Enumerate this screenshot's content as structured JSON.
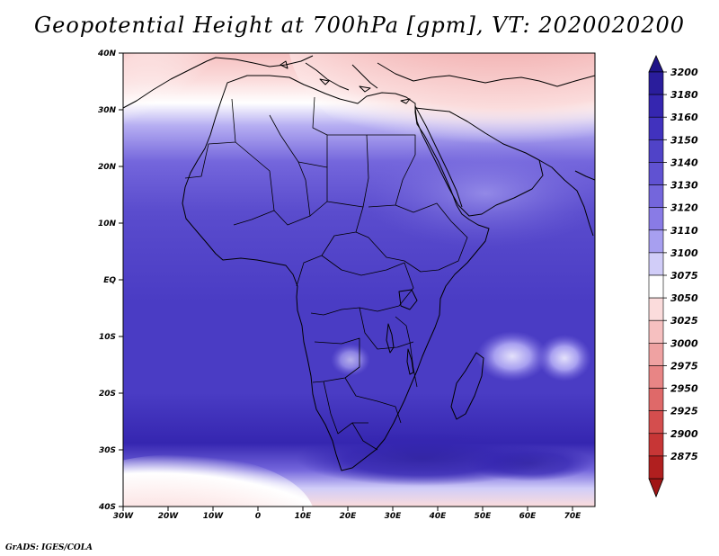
{
  "title": "Geopotential Height at 700hPa [gpm], VT: 2020020200",
  "credit": "GrADS: IGES/COLA",
  "lat_labels": [
    "40N",
    "30N",
    "20N",
    "10N",
    "EQ",
    "10S",
    "20S",
    "30S",
    "40S"
  ],
  "lon_labels": [
    "30W",
    "20W",
    "10W",
    "0",
    "10E",
    "20E",
    "30E",
    "40E",
    "50E",
    "60E",
    "70E"
  ],
  "colorbar": {
    "labels": [
      "3200",
      "3180",
      "3160",
      "3150",
      "3140",
      "3130",
      "3120",
      "3110",
      "3100",
      "3075",
      "3050",
      "3025",
      "3000",
      "2975",
      "2950",
      "2925",
      "2900",
      "2875"
    ],
    "colors": [
      "#2a1d9c",
      "#3526b0",
      "#4132be",
      "#5043c8",
      "#6052d2",
      "#7466dc",
      "#897be6",
      "#a79ff0",
      "#d1cdf8",
      "#ffffff",
      "#fbdcdc",
      "#f6c0c0",
      "#efa2a2",
      "#e88585",
      "#df6969",
      "#d44e4e",
      "#c73636",
      "#b01f1f"
    ],
    "top_arrow_color": "#1f1488",
    "bottom_arrow_color": "#a01616"
  }
}
